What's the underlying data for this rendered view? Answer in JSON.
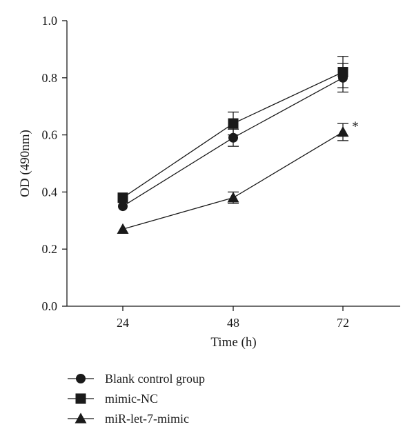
{
  "chart_data": {
    "type": "line",
    "xlabel": "Time (h)",
    "ylabel": "OD (490nm)",
    "x": [
      24,
      48,
      72
    ],
    "x_tick_labels": [
      "24",
      "48",
      "72"
    ],
    "ylim": [
      0.0,
      1.0
    ],
    "y_ticks": [
      0.0,
      0.2,
      0.4,
      0.6,
      0.8,
      1.0
    ],
    "y_tick_labels": [
      "0.0",
      "0.2",
      "0.4",
      "0.6",
      "0.8",
      "1.0"
    ],
    "grid": false,
    "legend_position": "bottom-left",
    "series": [
      {
        "name": "Blank control group",
        "marker": "circle",
        "values": [
          0.35,
          0.59,
          0.8
        ],
        "errors": [
          0.0,
          0.03,
          0.05
        ]
      },
      {
        "name": "mimic-NC",
        "marker": "square",
        "values": [
          0.38,
          0.64,
          0.82
        ],
        "errors": [
          0.0,
          0.04,
          0.055
        ]
      },
      {
        "name": "miR-let-7-mimic",
        "marker": "triangle",
        "values": [
          0.27,
          0.38,
          0.61
        ],
        "errors": [
          0.0,
          0.02,
          0.03
        ]
      }
    ],
    "annotations": [
      {
        "text": "*",
        "series": "miR-let-7-mimic",
        "x": 72
      }
    ]
  }
}
